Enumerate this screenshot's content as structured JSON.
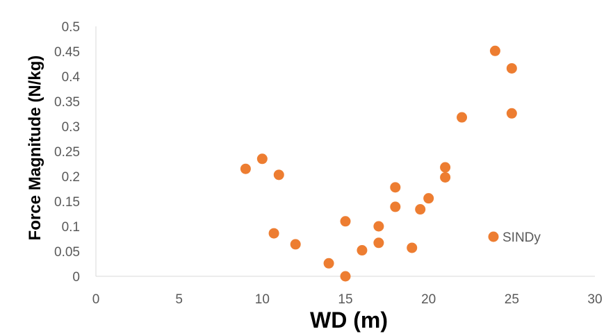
{
  "chart_data": {
    "type": "scatter",
    "xlabel": "WD (m)",
    "ylabel": "Force Magnitude (N/kg)",
    "xlim": [
      0,
      30
    ],
    "ylim": [
      0,
      0.5
    ],
    "x_ticks": [
      0,
      5,
      10,
      15,
      20,
      25,
      30
    ],
    "y_ticks": [
      0,
      0.05,
      0.1,
      0.15,
      0.2,
      0.25,
      0.3,
      0.35,
      0.4,
      0.45,
      0.5
    ],
    "x_tick_labels": [
      "0",
      "5",
      "10",
      "15",
      "20",
      "25",
      "30"
    ],
    "y_tick_labels": [
      "0",
      "0.05",
      "0.1",
      "0.15",
      "0.2",
      "0.25",
      "0.3",
      "0.35",
      "0.4",
      "0.45",
      "0.5"
    ],
    "grid": false,
    "legend_position": "right",
    "series": [
      {
        "name": "SINDy",
        "color": "#ED7D31",
        "points": [
          {
            "x": 9,
            "y": 0.215
          },
          {
            "x": 10,
            "y": 0.235
          },
          {
            "x": 11,
            "y": 0.203
          },
          {
            "x": 10.7,
            "y": 0.086
          },
          {
            "x": 12,
            "y": 0.064
          },
          {
            "x": 14,
            "y": 0.026
          },
          {
            "x": 15,
            "y": 0.0
          },
          {
            "x": 15,
            "y": 0.11
          },
          {
            "x": 16,
            "y": 0.052
          },
          {
            "x": 17,
            "y": 0.067
          },
          {
            "x": 17,
            "y": 0.1
          },
          {
            "x": 18,
            "y": 0.178
          },
          {
            "x": 18,
            "y": 0.139
          },
          {
            "x": 19,
            "y": 0.057
          },
          {
            "x": 19.5,
            "y": 0.134
          },
          {
            "x": 20,
            "y": 0.156
          },
          {
            "x": 21,
            "y": 0.198
          },
          {
            "x": 21,
            "y": 0.218
          },
          {
            "x": 22,
            "y": 0.318
          },
          {
            "x": 24,
            "y": 0.451
          },
          {
            "x": 25,
            "y": 0.416
          },
          {
            "x": 25,
            "y": 0.326
          }
        ]
      }
    ]
  }
}
